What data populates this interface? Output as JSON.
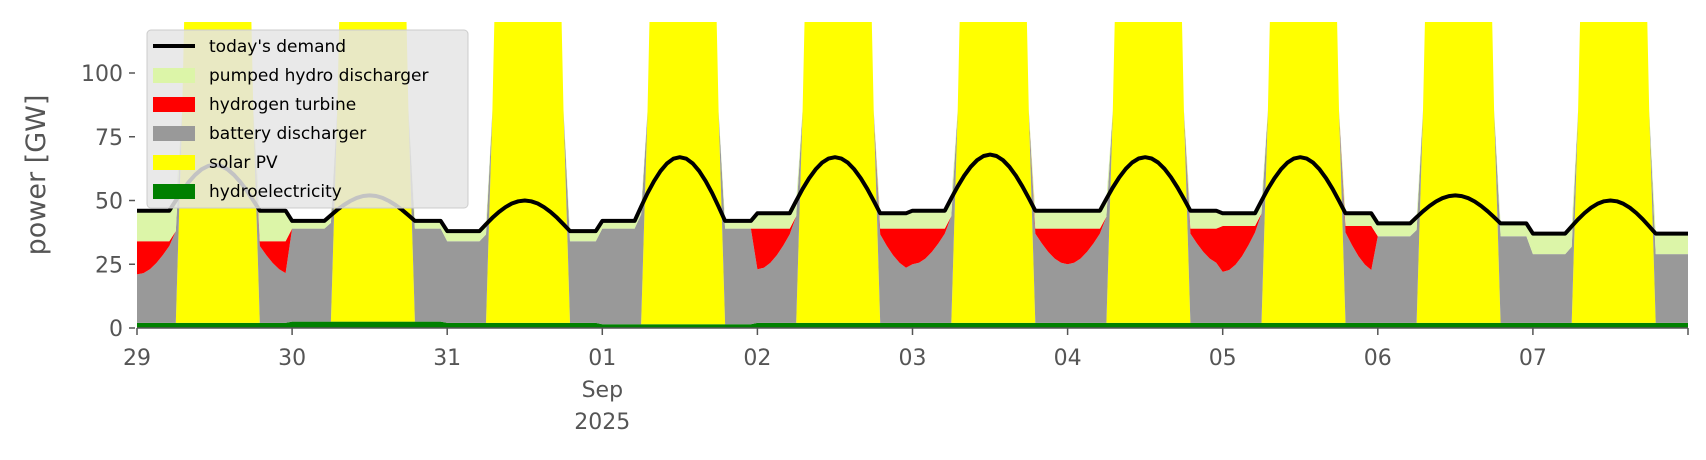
{
  "chart_data": {
    "type": "area",
    "title": "",
    "ylabel": "power [GW]",
    "xlabel": "",
    "ylim": [
      0,
      120
    ],
    "yticks": [
      0,
      25,
      50,
      75,
      100
    ],
    "x_start": "2025-08-29T00:00",
    "x_end": "2025-09-08T00:00",
    "x_tick_labels": [
      "29",
      "30",
      "31",
      "01",
      "02",
      "03",
      "04",
      "05",
      "06",
      "07"
    ],
    "x_secondary_label": [
      "Sep",
      "2025"
    ],
    "grid": false,
    "legend_position": "top-left",
    "background": "#ffffff",
    "days": [
      {
        "date": "2025-08-29",
        "demand_night": 46,
        "demand_day": 64,
        "hydro": 2,
        "hydrogen": 13,
        "pumped": 12
      },
      {
        "date": "2025-08-30",
        "demand_night": 42,
        "demand_day": 52,
        "hydro": 2.5,
        "hydrogen": 0,
        "pumped": 3
      },
      {
        "date": "2025-08-31",
        "demand_night": 38,
        "demand_day": 50,
        "hydro": 2,
        "hydrogen": 0,
        "pumped": 4
      },
      {
        "date": "2025-09-01",
        "demand_night": 42,
        "demand_day": 67,
        "hydro": 1.5,
        "hydrogen": 0,
        "pumped": 3
      },
      {
        "date": "2025-09-02",
        "demand_night": 45,
        "demand_day": 67,
        "hydro": 2,
        "hydrogen": 16,
        "pumped": 6
      },
      {
        "date": "2025-09-03",
        "demand_night": 46,
        "demand_day": 68,
        "hydro": 2,
        "hydrogen": 14,
        "pumped": 7
      },
      {
        "date": "2025-09-04",
        "demand_night": 46,
        "demand_day": 67,
        "hydro": 2,
        "hydrogen": 14,
        "pumped": 7
      },
      {
        "date": "2025-09-05",
        "demand_night": 45,
        "demand_day": 67,
        "hydro": 2,
        "hydrogen": 18,
        "pumped": 5
      },
      {
        "date": "2025-09-06",
        "demand_night": 41,
        "demand_day": 52,
        "hydro": 2,
        "hydrogen": 0,
        "pumped": 5
      },
      {
        "date": "2025-09-07",
        "demand_night": 37,
        "demand_day": 50,
        "hydro": 2,
        "hydrogen": 0,
        "pumped": 8
      }
    ],
    "day_profile": {
      "solar_start_hour": 6.5,
      "solar_end_hour": 18.5,
      "solar_peak_gw": 200
    },
    "series": [
      {
        "name": "today's demand",
        "type": "line",
        "color": "#000000"
      },
      {
        "name": "pumped hydro discharger",
        "type": "area",
        "color": "#dcf5a8"
      },
      {
        "name": "hydrogen turbine",
        "type": "area",
        "color": "#ff0000"
      },
      {
        "name": "battery discharger",
        "type": "area",
        "color": "#999999"
      },
      {
        "name": "solar PV",
        "type": "area",
        "color": "#ffff00"
      },
      {
        "name": "hydroelectricity",
        "type": "area",
        "color": "#008000"
      }
    ]
  }
}
